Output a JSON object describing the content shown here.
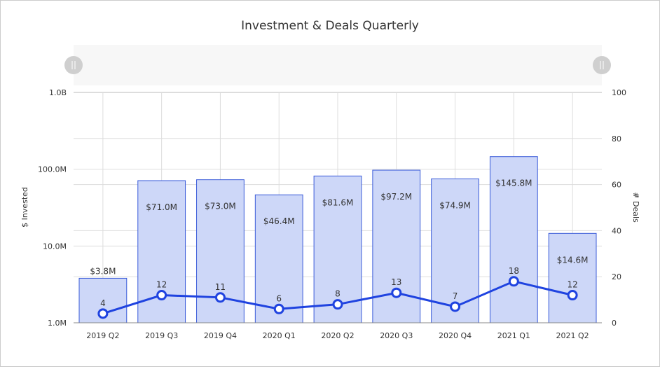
{
  "chart_data": {
    "type": "bar+line",
    "title": "Investment & Deals Quarterly",
    "categories": [
      "2019 Q2",
      "2019 Q3",
      "2019 Q4",
      "2020 Q1",
      "2020 Q2",
      "2020 Q3",
      "2020 Q4",
      "2021 Q1",
      "2021 Q2"
    ],
    "series": [
      {
        "name": "$ Invested",
        "type": "bar",
        "axis": "left",
        "values": [
          3.8,
          71.0,
          73.0,
          46.4,
          81.6,
          97.2,
          74.9,
          145.8,
          14.6
        ],
        "unit": "M",
        "labels": [
          "$3.8M",
          "$71.0M",
          "$73.0M",
          "$46.4M",
          "$81.6M",
          "$97.2M",
          "$74.9M",
          "$145.8M",
          "$14.6M"
        ]
      },
      {
        "name": "# Deals",
        "type": "line",
        "axis": "right",
        "values": [
          4,
          12,
          11,
          6,
          8,
          13,
          7,
          18,
          12
        ]
      }
    ],
    "ylabel": "$ Invested",
    "y2label": "# Deals",
    "yscale": "log",
    "ylim": [
      1,
      1000
    ],
    "yticks": [
      "1.0M",
      "10.0M",
      "100.0M",
      "1.0B"
    ],
    "y2lim": [
      0,
      100
    ],
    "y2ticks": [
      "0",
      "20",
      "40",
      "60",
      "80",
      "100"
    ],
    "grid": true,
    "colors": {
      "bar_fill": "#cdd7f8",
      "bar_stroke": "#3a5bd9",
      "line": "#1f43e0",
      "text": "#333333"
    }
  }
}
